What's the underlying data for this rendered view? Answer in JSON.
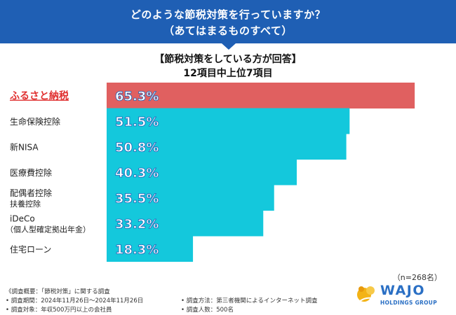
{
  "header": {
    "line1": "どのような節税対策を行っていますか？",
    "line2": "（あてはまるものすべて）"
  },
  "subtitle": {
    "line1": "【節税対策をしている方が回答】",
    "line2": "12項目中上位7項目"
  },
  "colors": {
    "header_bg": "#1f5fb4",
    "highlight_bar": "#e06060",
    "bar": "#14c8dc",
    "highlight_label": "#e03030"
  },
  "chart_data": {
    "type": "bar",
    "orientation": "horizontal",
    "title": "どのような節税対策を行っていますか？（あてはまるものすべて）",
    "categories": [
      [
        "ふるさと納税"
      ],
      [
        "生命保険控除"
      ],
      [
        "新NISA"
      ],
      [
        "医療費控除"
      ],
      [
        "配偶者控除",
        "扶養控除"
      ],
      [
        "iDeCo",
        "（個人型確定拠出年金）"
      ],
      [
        "住宅ローン"
      ]
    ],
    "values": [
      65.3,
      51.5,
      50.8,
      40.3,
      35.5,
      33.2,
      18.3
    ],
    "value_labels": [
      "65.3%",
      "51.5%",
      "50.8%",
      "40.3%",
      "35.5%",
      "33.2%",
      "18.3%"
    ],
    "highlight_index": 0,
    "unit": "%",
    "xlim": [
      0,
      100
    ]
  },
  "sample_size": "（n=268名）",
  "footer": {
    "summary": "《調査概要：「節税対策」に関する調査",
    "period": "• 調査期間：2024年11月26日〜2024年11月26日",
    "target": "• 調査対象：年収500万円以上の会社員",
    "method": "• 調査方法：第三者機関によるインターネット調査",
    "count": "• 調査人数：500名"
  },
  "logo": {
    "name": "WAJO",
    "sub": "HOLDINGS GROUP",
    "icon": "gold-leaf-icon"
  }
}
